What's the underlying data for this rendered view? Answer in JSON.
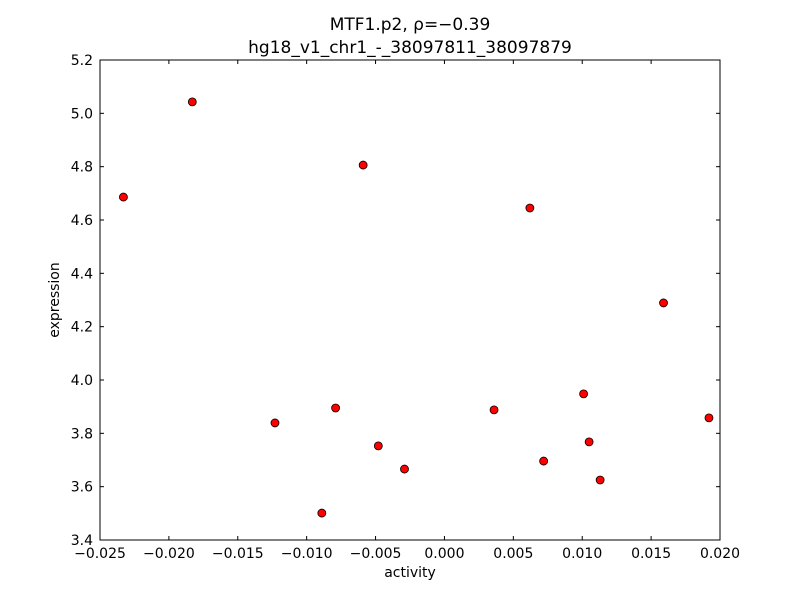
{
  "chart_data": {
    "type": "scatter",
    "title_line1": "MTF1.p2, ρ=−0.39",
    "title_line2": "hg18_v1_chr1_-_38097811_38097879",
    "xlabel": "activity",
    "ylabel": "expression",
    "xlim": [
      -0.025,
      0.02
    ],
    "ylim": [
      3.4,
      5.2
    ],
    "xticks": [
      -0.025,
      -0.02,
      -0.015,
      -0.01,
      -0.005,
      0.0,
      0.005,
      0.01,
      0.015,
      0.02
    ],
    "xtick_labels": [
      "−0.025",
      "−0.020",
      "−0.015",
      "−0.010",
      "−0.005",
      "0.000",
      "0.005",
      "0.010",
      "0.015",
      "0.020"
    ],
    "yticks": [
      3.4,
      3.6,
      3.8,
      4.0,
      4.2,
      4.4,
      4.6,
      4.8,
      5.0,
      5.2
    ],
    "ytick_labels": [
      "3.4",
      "3.6",
      "3.8",
      "4.0",
      "4.2",
      "4.4",
      "4.6",
      "4.8",
      "5.0",
      "5.2"
    ],
    "marker_color": "#ff0000",
    "grid": false,
    "points": [
      {
        "x": -0.0233,
        "y": 4.686
      },
      {
        "x": -0.0183,
        "y": 5.043
      },
      {
        "x": -0.0059,
        "y": 4.806
      },
      {
        "x": 0.0062,
        "y": 4.645
      },
      {
        "x": 0.0159,
        "y": 4.289
      },
      {
        "x": 0.0101,
        "y": 3.948
      },
      {
        "x": 0.0192,
        "y": 3.858
      },
      {
        "x": -0.0123,
        "y": 3.839
      },
      {
        "x": -0.0079,
        "y": 3.895
      },
      {
        "x": 0.0036,
        "y": 3.888
      },
      {
        "x": -0.0048,
        "y": 3.753
      },
      {
        "x": 0.0105,
        "y": 3.768
      },
      {
        "x": -0.0029,
        "y": 3.666
      },
      {
        "x": 0.0072,
        "y": 3.696
      },
      {
        "x": 0.0113,
        "y": 3.625
      },
      {
        "x": -0.0089,
        "y": 3.501
      }
    ]
  }
}
